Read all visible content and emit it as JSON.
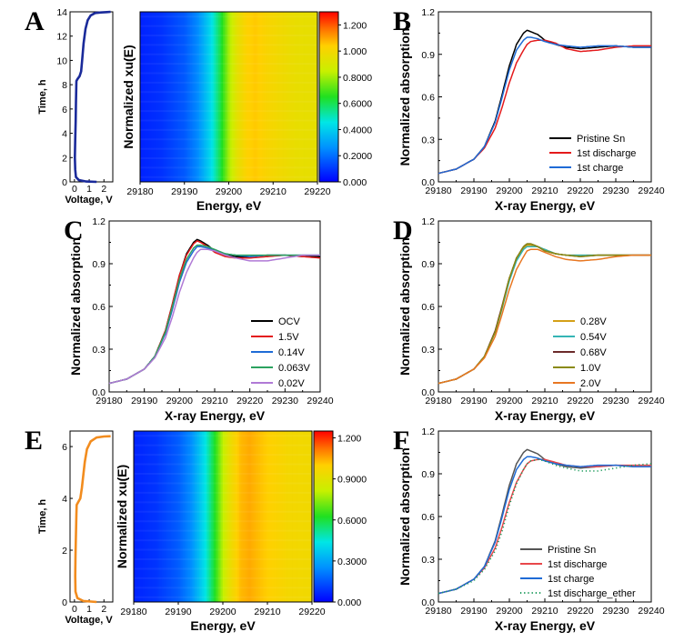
{
  "panels": {
    "A": {
      "letter": "A",
      "time_axis": {
        "label": "Time, h",
        "ticks": [
          "0",
          "2",
          "4",
          "6",
          "8",
          "10",
          "12",
          "14"
        ],
        "range": [
          0,
          14
        ]
      },
      "voltage_axis": {
        "label": "Voltage, V",
        "ticks": [
          "0",
          "1",
          "2"
        ],
        "range": [
          -0.3,
          2.6
        ]
      },
      "voltage_curve": {
        "color": "#1a2a9a",
        "points": [
          [
            2.45,
            14.0
          ],
          [
            2.2,
            13.98
          ],
          [
            1.8,
            13.95
          ],
          [
            1.4,
            13.9
          ],
          [
            1.1,
            13.7
          ],
          [
            0.9,
            13.3
          ],
          [
            0.75,
            12.6
          ],
          [
            0.62,
            11.4
          ],
          [
            0.52,
            10.0
          ],
          [
            0.45,
            9.1
          ],
          [
            0.35,
            8.7
          ],
          [
            0.2,
            8.45
          ],
          [
            0.13,
            8.3
          ],
          [
            0.12,
            7.6
          ],
          [
            0.1,
            6.5
          ],
          [
            0.08,
            5.0
          ],
          [
            0.05,
            3.5
          ],
          [
            0.03,
            2.0
          ],
          [
            0.05,
            1.0
          ],
          [
            0.1,
            0.4
          ],
          [
            0.3,
            0.15
          ],
          [
            0.8,
            0.03
          ],
          [
            1.5,
            0.0
          ]
        ]
      },
      "map": {
        "xlabel": "Energy, eV",
        "ylabel": "Normalized xu(E)",
        "xticks": [
          "29180",
          "29190",
          "29200",
          "29210",
          "29220"
        ],
        "xrange": [
          29180,
          29220
        ]
      },
      "colorbar": {
        "ticks": [
          "0.000",
          "0.2000",
          "0.4000",
          "0.6000",
          "0.8000",
          "1.000",
          "1.200"
        ],
        "range": [
          0,
          1.3
        ]
      }
    },
    "B": {
      "letter": "B",
      "xlabel": "X-ray Energy, eV",
      "ylabel": "Normalized absorption",
      "legend": [
        {
          "label": "Pristine Sn",
          "color": "#000000"
        },
        {
          "label": "1st discharge",
          "color": "#e41a1c"
        },
        {
          "label": "1st charge",
          "color": "#1f6bd6"
        }
      ]
    },
    "C": {
      "letter": "C",
      "xlabel": "X-ray Energy, eV",
      "ylabel": "Normalized absorption",
      "legend": [
        {
          "label": "OCV",
          "color": "#000000"
        },
        {
          "label": "1.5V",
          "color": "#e41a1c"
        },
        {
          "label": "0.14V",
          "color": "#1f6bd6"
        },
        {
          "label": "0.063V",
          "color": "#2ca25f"
        },
        {
          "label": "0.02V",
          "color": "#b07ad6"
        }
      ]
    },
    "D": {
      "letter": "D",
      "xlabel": "X-ray Energy, eV",
      "ylabel": "Normalized absorption",
      "legend": [
        {
          "label": "0.28V",
          "color": "#d4a017"
        },
        {
          "label": "0.54V",
          "color": "#35b5b5"
        },
        {
          "label": "0.68V",
          "color": "#6b2a2a"
        },
        {
          "label": "1.0V",
          "color": "#8a8a10"
        },
        {
          "label": "2.0V",
          "color": "#e87722"
        }
      ]
    },
    "E": {
      "letter": "E",
      "time_axis": {
        "label": "Time, h",
        "ticks": [
          "0",
          "2",
          "4",
          "6"
        ],
        "range": [
          0,
          6.6
        ]
      },
      "voltage_axis": {
        "label": "Voltage, V",
        "ticks": [
          "0",
          "1",
          "2"
        ],
        "range": [
          -0.3,
          2.6
        ]
      },
      "voltage_curve": {
        "color": "#f28c1e",
        "points": [
          [
            2.45,
            6.4
          ],
          [
            2.0,
            6.39
          ],
          [
            1.5,
            6.35
          ],
          [
            1.1,
            6.2
          ],
          [
            0.85,
            5.9
          ],
          [
            0.7,
            5.4
          ],
          [
            0.6,
            4.9
          ],
          [
            0.5,
            4.4
          ],
          [
            0.4,
            4.0
          ],
          [
            0.25,
            3.85
          ],
          [
            0.15,
            3.75
          ],
          [
            0.13,
            3.4
          ],
          [
            0.1,
            2.6
          ],
          [
            0.07,
            1.8
          ],
          [
            0.05,
            1.0
          ],
          [
            0.07,
            0.4
          ],
          [
            0.2,
            0.15
          ],
          [
            0.6,
            0.04
          ],
          [
            1.5,
            0.0
          ]
        ]
      },
      "map": {
        "xlabel": "Energy, eV",
        "ylabel": "Normalized xu(E)",
        "xticks": [
          "29180",
          "29190",
          "29200",
          "29210",
          "29220"
        ],
        "xrange": [
          29180,
          29220
        ]
      },
      "colorbar": {
        "ticks": [
          "0.000",
          "0.3000",
          "0.6000",
          "0.9000",
          "1.200"
        ],
        "range": [
          0,
          1.25
        ]
      }
    },
    "F": {
      "letter": "F",
      "xlabel": "X-ray Energy, eV",
      "ylabel": "Normalized absorption",
      "legend": [
        {
          "label": "Pristine Sn",
          "color": "#555555"
        },
        {
          "label": "1st discharge",
          "color": "#e8474a"
        },
        {
          "label": "1st charge",
          "color": "#1f6bd6"
        },
        {
          "label": "1st discharge_ether",
          "color": "#1a9a5a"
        }
      ]
    }
  },
  "chart_data": [
    {
      "panel": "B",
      "type": "line",
      "xlabel": "X-ray Energy, eV",
      "ylabel": "Normalized absorption",
      "xlim": [
        29180,
        29240
      ],
      "ylim": [
        0,
        1.2
      ],
      "xticks": [
        "29180",
        "29190",
        "29200",
        "29210",
        "29220",
        "29230",
        "29240"
      ],
      "yticks": [
        "0.0",
        "0.3",
        "0.6",
        "0.9",
        "1.2"
      ],
      "x": [
        29180,
        29185,
        29190,
        29193,
        29196,
        29198,
        29200,
        29202,
        29204,
        29205,
        29206,
        29208,
        29210,
        29213,
        29216,
        29220,
        29225,
        29230,
        29235,
        29240
      ],
      "series": [
        {
          "name": "Pristine Sn",
          "color": "#000000",
          "values": [
            0.06,
            0.09,
            0.16,
            0.25,
            0.43,
            0.62,
            0.82,
            0.97,
            1.05,
            1.07,
            1.06,
            1.04,
            1.0,
            0.97,
            0.95,
            0.94,
            0.95,
            0.96,
            0.95,
            0.95
          ]
        },
        {
          "name": "1st discharge",
          "color": "#e41a1c",
          "values": [
            0.06,
            0.09,
            0.16,
            0.24,
            0.38,
            0.53,
            0.7,
            0.84,
            0.93,
            0.97,
            0.99,
            1.0,
            1.0,
            0.98,
            0.94,
            0.92,
            0.93,
            0.95,
            0.96,
            0.96
          ]
        },
        {
          "name": "1st charge",
          "color": "#1f6bd6",
          "values": [
            0.06,
            0.09,
            0.16,
            0.25,
            0.42,
            0.6,
            0.79,
            0.93,
            1.0,
            1.02,
            1.02,
            1.01,
            0.99,
            0.97,
            0.96,
            0.95,
            0.96,
            0.96,
            0.95,
            0.95
          ]
        }
      ]
    },
    {
      "panel": "C",
      "type": "line",
      "xlabel": "X-ray Energy, eV",
      "ylabel": "Normalized absorption",
      "xlim": [
        29180,
        29240
      ],
      "ylim": [
        0,
        1.2
      ],
      "xticks": [
        "29180",
        "29190",
        "29200",
        "29210",
        "29220",
        "29230",
        "29240"
      ],
      "yticks": [
        "0.0",
        "0.3",
        "0.6",
        "0.9",
        "1.2"
      ],
      "x": [
        29180,
        29185,
        29190,
        29193,
        29196,
        29198,
        29200,
        29202,
        29204,
        29205,
        29206,
        29208,
        29210,
        29213,
        29216,
        29220,
        29225,
        29230,
        29235,
        29240
      ],
      "series": [
        {
          "name": "OCV",
          "color": "#000000",
          "values": [
            0.06,
            0.09,
            0.16,
            0.25,
            0.43,
            0.62,
            0.82,
            0.97,
            1.05,
            1.07,
            1.06,
            1.03,
            0.99,
            0.96,
            0.95,
            0.95,
            0.96,
            0.96,
            0.95,
            0.95
          ]
        },
        {
          "name": "1.5V",
          "color": "#e41a1c",
          "values": [
            0.06,
            0.09,
            0.16,
            0.25,
            0.43,
            0.62,
            0.82,
            0.96,
            1.04,
            1.06,
            1.05,
            1.02,
            0.98,
            0.95,
            0.94,
            0.94,
            0.95,
            0.96,
            0.95,
            0.94
          ]
        },
        {
          "name": "0.14V",
          "color": "#1f6bd6",
          "values": [
            0.06,
            0.09,
            0.16,
            0.25,
            0.41,
            0.58,
            0.77,
            0.91,
            0.99,
            1.02,
            1.02,
            1.01,
            0.99,
            0.97,
            0.96,
            0.95,
            0.96,
            0.96,
            0.96,
            0.96
          ]
        },
        {
          "name": "0.063V",
          "color": "#2ca25f",
          "values": [
            0.06,
            0.09,
            0.16,
            0.25,
            0.42,
            0.6,
            0.79,
            0.93,
            1.01,
            1.03,
            1.03,
            1.02,
            1.0,
            0.97,
            0.96,
            0.96,
            0.96,
            0.96,
            0.96,
            0.96
          ]
        },
        {
          "name": "0.02V",
          "color": "#b07ad6",
          "values": [
            0.06,
            0.09,
            0.16,
            0.24,
            0.38,
            0.53,
            0.7,
            0.84,
            0.94,
            0.98,
            1.0,
            1.0,
            0.99,
            0.96,
            0.94,
            0.92,
            0.92,
            0.94,
            0.96,
            0.96
          ]
        }
      ]
    },
    {
      "panel": "D",
      "type": "line",
      "xlabel": "X-ray Energy, eV",
      "ylabel": "Normalized absorption",
      "xlim": [
        29180,
        29240
      ],
      "ylim": [
        0,
        1.2
      ],
      "xticks": [
        "29180",
        "29190",
        "29200",
        "29210",
        "29220",
        "29230",
        "29240"
      ],
      "yticks": [
        "0.0",
        "0.3",
        "0.6",
        "0.9",
        "1.2"
      ],
      "x": [
        29180,
        29185,
        29190,
        29193,
        29196,
        29198,
        29200,
        29202,
        29204,
        29205,
        29206,
        29208,
        29210,
        29213,
        29216,
        29220,
        29225,
        29230,
        29235,
        29240
      ],
      "series": [
        {
          "name": "0.28V",
          "color": "#d4a017",
          "values": [
            0.06,
            0.09,
            0.16,
            0.25,
            0.42,
            0.6,
            0.79,
            0.93,
            1.01,
            1.03,
            1.03,
            1.02,
            1.0,
            0.97,
            0.96,
            0.96,
            0.96,
            0.96,
            0.96,
            0.96
          ]
        },
        {
          "name": "0.54V",
          "color": "#35b5b5",
          "values": [
            0.06,
            0.09,
            0.16,
            0.25,
            0.42,
            0.59,
            0.78,
            0.92,
            1.0,
            1.02,
            1.02,
            1.02,
            1.0,
            0.97,
            0.96,
            0.96,
            0.96,
            0.96,
            0.96,
            0.96
          ]
        },
        {
          "name": "0.68V",
          "color": "#6b2a2a",
          "values": [
            0.06,
            0.09,
            0.16,
            0.25,
            0.43,
            0.61,
            0.8,
            0.94,
            1.02,
            1.04,
            1.04,
            1.02,
            0.99,
            0.97,
            0.96,
            0.95,
            0.96,
            0.96,
            0.96,
            0.96
          ]
        },
        {
          "name": "1.0V",
          "color": "#8a8a10",
          "values": [
            0.06,
            0.09,
            0.16,
            0.25,
            0.42,
            0.6,
            0.8,
            0.94,
            1.02,
            1.04,
            1.04,
            1.02,
            0.99,
            0.97,
            0.96,
            0.95,
            0.96,
            0.96,
            0.96,
            0.96
          ]
        },
        {
          "name": "2.0V",
          "color": "#e87722",
          "values": [
            0.06,
            0.09,
            0.16,
            0.24,
            0.39,
            0.55,
            0.72,
            0.86,
            0.95,
            0.99,
            1.0,
            1.0,
            0.98,
            0.95,
            0.93,
            0.92,
            0.93,
            0.95,
            0.96,
            0.96
          ]
        }
      ]
    },
    {
      "panel": "F",
      "type": "line",
      "xlabel": "X-ray Energy, eV",
      "ylabel": "Normalized absorption",
      "xlim": [
        29180,
        29240
      ],
      "ylim": [
        0,
        1.2
      ],
      "xticks": [
        "29180",
        "29190",
        "29200",
        "29210",
        "29220",
        "29230",
        "29240"
      ],
      "yticks": [
        "0.0",
        "0.3",
        "0.6",
        "0.9",
        "1.2"
      ],
      "x": [
        29180,
        29185,
        29190,
        29193,
        29196,
        29198,
        29200,
        29202,
        29204,
        29205,
        29206,
        29208,
        29210,
        29213,
        29216,
        29220,
        29225,
        29230,
        29235,
        29240
      ],
      "series": [
        {
          "name": "Pristine Sn",
          "color": "#555555",
          "values": [
            0.06,
            0.09,
            0.16,
            0.25,
            0.43,
            0.62,
            0.82,
            0.97,
            1.05,
            1.07,
            1.06,
            1.04,
            1.0,
            0.97,
            0.95,
            0.94,
            0.95,
            0.96,
            0.95,
            0.95
          ]
        },
        {
          "name": "1st discharge",
          "color": "#e8474a",
          "values": [
            0.06,
            0.09,
            0.16,
            0.24,
            0.38,
            0.53,
            0.7,
            0.84,
            0.93,
            0.97,
            0.99,
            1.0,
            1.0,
            0.98,
            0.96,
            0.95,
            0.95,
            0.96,
            0.96,
            0.96
          ]
        },
        {
          "name": "1st charge",
          "color": "#1f6bd6",
          "values": [
            0.06,
            0.09,
            0.16,
            0.25,
            0.42,
            0.6,
            0.79,
            0.93,
            1.0,
            1.02,
            1.02,
            1.01,
            0.99,
            0.97,
            0.96,
            0.95,
            0.96,
            0.96,
            0.95,
            0.95
          ]
        },
        {
          "name": "1st discharge_ether",
          "color": "#1a9a5a",
          "dotted": true,
          "values": [
            0.06,
            0.09,
            0.15,
            0.23,
            0.36,
            0.5,
            0.68,
            0.83,
            0.93,
            0.97,
            0.99,
            1.0,
            0.99,
            0.96,
            0.94,
            0.92,
            0.92,
            0.94,
            0.96,
            0.97
          ]
        }
      ]
    },
    {
      "panel": "A",
      "type": "heatmap",
      "xlabel": "Energy, eV",
      "ylabel": "Normalized xu(E)",
      "xlim": [
        29180,
        29220
      ],
      "energy": [
        29180,
        29185,
        29190,
        29193,
        29196,
        29198,
        29200,
        29202,
        29204,
        29206,
        29210,
        29215,
        29220
      ],
      "intensity": [
        0.06,
        0.09,
        0.16,
        0.25,
        0.43,
        0.6,
        0.8,
        0.95,
        1.03,
        1.05,
        1.0,
        0.96,
        0.95
      ],
      "colorbar_range": [
        0,
        1.3
      ]
    },
    {
      "panel": "E",
      "type": "heatmap",
      "xlabel": "Energy, eV",
      "ylabel": "Normalized xu(E)",
      "xlim": [
        29180,
        29220
      ],
      "energy": [
        29180,
        29185,
        29190,
        29193,
        29196,
        29198,
        29200,
        29202,
        29204,
        29206,
        29210,
        29215,
        29220
      ],
      "intensity": [
        0.06,
        0.09,
        0.16,
        0.25,
        0.43,
        0.6,
        0.8,
        0.95,
        1.03,
        1.05,
        1.0,
        0.96,
        0.95
      ],
      "colorbar_range": [
        0,
        1.25
      ]
    }
  ]
}
